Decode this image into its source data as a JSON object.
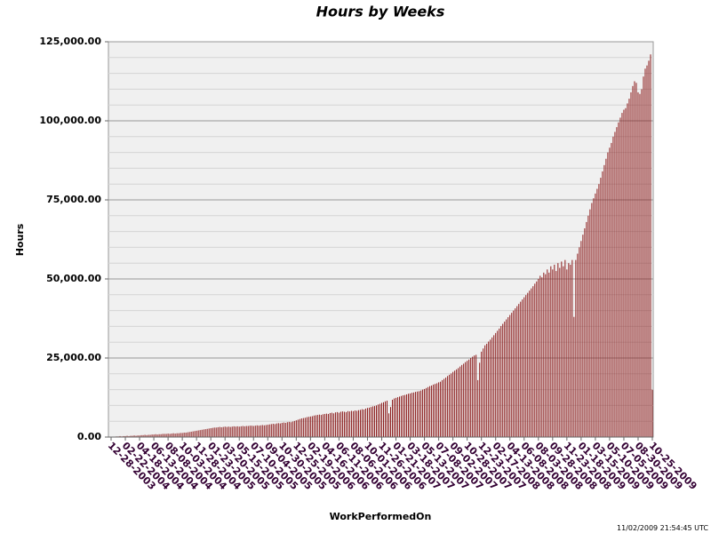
{
  "chart_data": {
    "type": "bar",
    "title": "Hours by Weeks",
    "x_label": "WorkPerformedOn",
    "y_label": "Hours",
    "timestamp": "11/02/2009 21:54:45 UTC",
    "color": "#8b1a1a",
    "grid": true,
    "ylim": [
      0,
      125000
    ],
    "yticks": [
      {
        "value": 0,
        "label": "0.00"
      },
      {
        "value": 25000,
        "label": "25,000.00"
      },
      {
        "value": 50000,
        "label": "50,000.00"
      },
      {
        "value": 75000,
        "label": "75,000.00"
      },
      {
        "value": 100000,
        "label": "100,000.00"
      },
      {
        "value": 125000,
        "label": "125,000.00"
      }
    ],
    "minor_yticks": [
      5000,
      10000,
      15000,
      20000,
      30000,
      35000,
      40000,
      45000,
      55000,
      60000,
      65000,
      70000,
      80000,
      85000,
      90000,
      95000,
      105000,
      110000,
      115000,
      120000
    ],
    "categories": [
      "12-28-2003",
      null,
      null,
      null,
      null,
      null,
      null,
      null,
      "02-22-2004",
      null,
      null,
      null,
      null,
      null,
      null,
      null,
      "04-18-2004",
      null,
      null,
      null,
      null,
      null,
      null,
      null,
      "06-13-2004",
      null,
      null,
      null,
      null,
      null,
      null,
      null,
      "08-08-2004",
      null,
      null,
      null,
      null,
      null,
      null,
      null,
      "10-03-2004",
      null,
      null,
      null,
      null,
      null,
      null,
      null,
      "11-28-2004",
      null,
      null,
      null,
      null,
      null,
      null,
      null,
      "01-23-2005",
      null,
      null,
      null,
      null,
      null,
      null,
      null,
      "03-20-2005",
      null,
      null,
      null,
      null,
      null,
      null,
      null,
      "05-15-2005",
      null,
      null,
      null,
      null,
      null,
      null,
      null,
      "07-10-2005",
      null,
      null,
      null,
      null,
      null,
      null,
      null,
      "09-04-2005",
      null,
      null,
      null,
      null,
      null,
      null,
      null,
      "10-30-2005",
      null,
      null,
      null,
      null,
      null,
      null,
      null,
      "12-25-2005",
      null,
      null,
      null,
      null,
      null,
      null,
      null,
      "02-19-2006",
      null,
      null,
      null,
      null,
      null,
      null,
      null,
      "04-16-2006",
      null,
      null,
      null,
      null,
      null,
      null,
      null,
      "06-11-2006",
      null,
      null,
      null,
      null,
      null,
      null,
      null,
      "08-06-2006",
      null,
      null,
      null,
      null,
      null,
      null,
      null,
      "10-01-2006",
      null,
      null,
      null,
      null,
      null,
      null,
      null,
      "11-26-2006",
      null,
      null,
      null,
      null,
      null,
      null,
      null,
      "01-21-2007",
      null,
      null,
      null,
      null,
      null,
      null,
      null,
      "03-18-2007",
      null,
      null,
      null,
      null,
      null,
      null,
      null,
      "05-13-2007",
      null,
      null,
      null,
      null,
      null,
      null,
      null,
      "07-08-2007",
      null,
      null,
      null,
      null,
      null,
      null,
      null,
      "09-02-2007",
      null,
      null,
      null,
      null,
      null,
      null,
      null,
      "10-28-2007",
      null,
      null,
      null,
      null,
      null,
      null,
      null,
      "12-23-2007",
      null,
      null,
      null,
      null,
      null,
      null,
      null,
      "02-17-2008",
      null,
      null,
      null,
      null,
      null,
      null,
      null,
      "04-13-2008",
      null,
      null,
      null,
      null,
      null,
      null,
      null,
      "06-08-2008",
      null,
      null,
      null,
      null,
      null,
      null,
      null,
      "08-03-2008",
      null,
      null,
      null,
      null,
      null,
      null,
      null,
      "09-28-2008",
      null,
      null,
      null,
      null,
      null,
      null,
      null,
      "11-23-2008",
      null,
      null,
      null,
      null,
      null,
      null,
      null,
      "01-18-2009",
      null,
      null,
      null,
      null,
      null,
      null,
      null,
      "03-15-2009",
      null,
      null,
      null,
      null,
      null,
      null,
      null,
      "05-10-2009",
      null,
      null,
      null,
      null,
      null,
      null,
      null,
      "07-05-2009",
      null,
      null,
      null,
      null,
      null,
      null,
      null,
      "08-30-2009",
      null,
      null,
      null,
      null,
      null,
      null,
      null,
      "10-25-2009"
    ],
    "values": [
      0,
      0,
      100,
      200,
      200,
      300,
      200,
      300,
      300,
      400,
      300,
      400,
      400,
      500,
      400,
      500,
      500,
      600,
      600,
      700,
      600,
      700,
      700,
      800,
      800,
      900,
      800,
      900,
      900,
      1000,
      1000,
      1000,
      1100,
      1000,
      1100,
      1200,
      1100,
      1200,
      1200,
      1300,
      1300,
      1400,
      1400,
      1500,
      1600,
      1700,
      1800,
      1900,
      2000,
      2100,
      2200,
      2300,
      2400,
      2500,
      2600,
      2700,
      2800,
      2900,
      3000,
      3000,
      3100,
      3200,
      3100,
      3200,
      3300,
      3200,
      3300,
      3200,
      3300,
      3400,
      3300,
      3400,
      3300,
      3400,
      3500,
      3400,
      3500,
      3500,
      3600,
      3600,
      3500,
      3600,
      3700,
      3600,
      3700,
      3800,
      3700,
      3800,
      3900,
      4000,
      4100,
      4200,
      4100,
      4300,
      4400,
      4300,
      4500,
      4600,
      4500,
      4700,
      4800,
      4700,
      4900,
      5100,
      5300,
      5500,
      5700,
      5900,
      6000,
      6100,
      6300,
      6400,
      6500,
      6600,
      6800,
      6900,
      7000,
      7100,
      7000,
      7200,
      7300,
      7400,
      7300,
      7600,
      7700,
      7500,
      7800,
      7900,
      7700,
      8000,
      8100,
      8000,
      7900,
      8200,
      8100,
      8300,
      8200,
      8400,
      8300,
      8500,
      8600,
      8800,
      8700,
      9000,
      9200,
      9300,
      9500,
      9700,
      9800,
      10000,
      10300,
      10500,
      10800,
      11000,
      11300,
      11500,
      7500,
      9500,
      11800,
      12200,
      12400,
      12600,
      12800,
      13000,
      13200,
      13300,
      13500,
      13700,
      13800,
      14000,
      14100,
      14300,
      14400,
      14500,
      14700,
      15000,
      15200,
      15500,
      15800,
      16100,
      16300,
      16600,
      16800,
      17000,
      17300,
      17500,
      18000,
      18400,
      18800,
      19300,
      19700,
      20100,
      20600,
      21000,
      21400,
      21800,
      22300,
      22800,
      23200,
      23700,
      24100,
      24500,
      25000,
      25400,
      25800,
      26000,
      18000,
      23500,
      27000,
      28000,
      29000,
      29500,
      30200,
      30800,
      31500,
      32200,
      32900,
      33600,
      34300,
      35100,
      35800,
      36500,
      37200,
      37900,
      38600,
      39300,
      40000,
      40700,
      41400,
      42100,
      42800,
      43500,
      44200,
      44900,
      45600,
      46300,
      47000,
      47700,
      48500,
      49200,
      50000,
      51000,
      50500,
      52000,
      51500,
      53000,
      52000,
      54000,
      53000,
      54500,
      52500,
      55000,
      53500,
      55500,
      54000,
      56000,
      53000,
      55000,
      54500,
      56000,
      38000,
      56000,
      58000,
      60000,
      62000,
      64000,
      66000,
      68000,
      70000,
      72000,
      74000,
      75500,
      77000,
      78500,
      80000,
      82000,
      84000,
      86000,
      88000,
      90000,
      91500,
      93000,
      95000,
      96500,
      98000,
      99500,
      101000,
      102500,
      103500,
      104000,
      105500,
      107000,
      109000,
      111000,
      112500,
      112000,
      109000,
      108500,
      110000,
      114000,
      116500,
      117500,
      119000,
      121000,
      15000
    ]
  }
}
